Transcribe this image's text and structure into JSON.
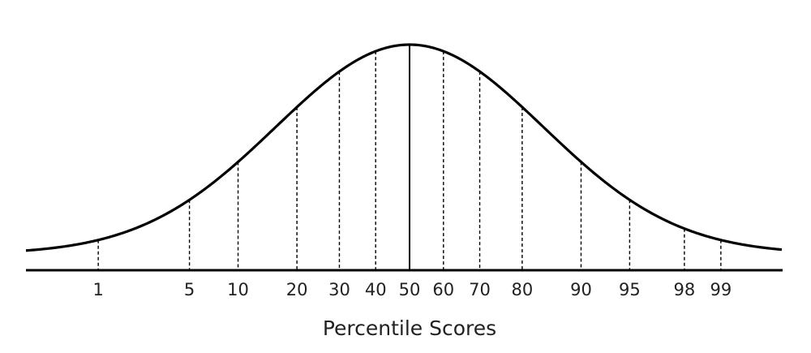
{
  "diagram": {
    "type": "normal-distribution-percentile-diagram",
    "axis_title": "Percentile Scores",
    "median_percentile": 50,
    "percentiles": [
      {
        "label": "1",
        "value": 1
      },
      {
        "label": "5",
        "value": 5
      },
      {
        "label": "10",
        "value": 10
      },
      {
        "label": "20",
        "value": 20
      },
      {
        "label": "30",
        "value": 30
      },
      {
        "label": "40",
        "value": 40
      },
      {
        "label": "50",
        "value": 50
      },
      {
        "label": "60",
        "value": 60
      },
      {
        "label": "70",
        "value": 70
      },
      {
        "label": "80",
        "value": 80
      },
      {
        "label": "90",
        "value": 90
      },
      {
        "label": "95",
        "value": 95
      },
      {
        "label": "98",
        "value": 98
      },
      {
        "label": "99",
        "value": 99
      }
    ],
    "colors": {
      "curve": "#000000",
      "marker_lines": "#000000",
      "text": "#222222",
      "background": "#ffffff"
    }
  }
}
